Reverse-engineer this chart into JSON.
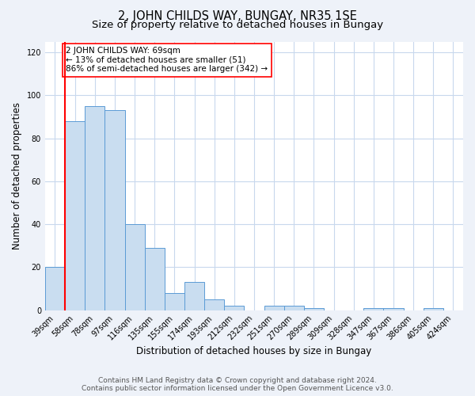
{
  "title": "2, JOHN CHILDS WAY, BUNGAY, NR35 1SE",
  "subtitle": "Size of property relative to detached houses in Bungay",
  "xlabel": "Distribution of detached houses by size in Bungay",
  "ylabel": "Number of detached properties",
  "bar_labels": [
    "39sqm",
    "58sqm",
    "78sqm",
    "97sqm",
    "116sqm",
    "135sqm",
    "155sqm",
    "174sqm",
    "193sqm",
    "212sqm",
    "232sqm",
    "251sqm",
    "270sqm",
    "289sqm",
    "309sqm",
    "328sqm",
    "347sqm",
    "367sqm",
    "386sqm",
    "405sqm",
    "424sqm"
  ],
  "bar_values": [
    20,
    88,
    95,
    93,
    40,
    29,
    8,
    13,
    5,
    2,
    0,
    2,
    2,
    1,
    0,
    0,
    1,
    1,
    0,
    1,
    0
  ],
  "bar_color": "#c9ddf0",
  "bar_edge_color": "#5b9bd5",
  "red_line_x": 0.5,
  "ylim": [
    0,
    125
  ],
  "yticks": [
    0,
    20,
    40,
    60,
    80,
    100,
    120
  ],
  "annotation_text_line1": "2 JOHN CHILDS WAY: 69sqm",
  "annotation_text_line2": "← 13% of detached houses are smaller (51)",
  "annotation_text_line3": "86% of semi-detached houses are larger (342) →",
  "footer_line1": "Contains HM Land Registry data © Crown copyright and database right 2024.",
  "footer_line2": "Contains public sector information licensed under the Open Government Licence v3.0.",
  "bg_color": "#eef2f9",
  "plot_bg_color": "#ffffff",
  "grid_color": "#c8d8ed",
  "title_fontsize": 10.5,
  "subtitle_fontsize": 9.5,
  "axis_label_fontsize": 8.5,
  "tick_fontsize": 7,
  "annotation_fontsize": 7.5,
  "footer_fontsize": 6.5
}
